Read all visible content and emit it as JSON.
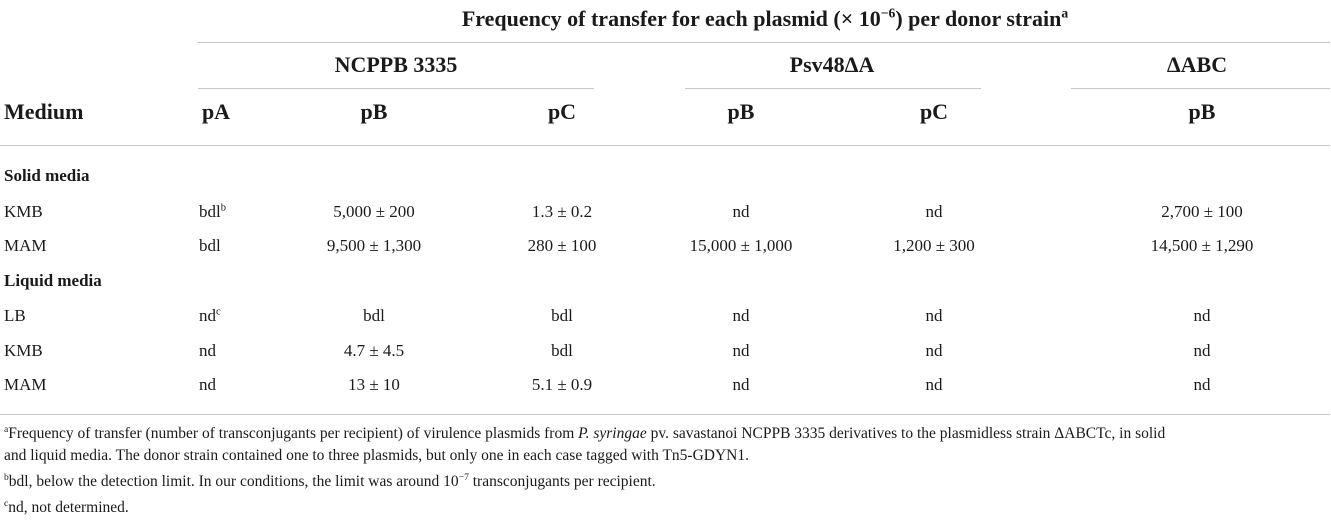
{
  "table": {
    "super_header": {
      "prefix": "Frequency of transfer for each plasmid (× 10",
      "exponent": "−6",
      "suffix": ") per donor strain",
      "note_marker": "a"
    },
    "strain_headers": [
      "NCPPB 3335",
      "Psv48ΔA",
      "ΔABC"
    ],
    "column_headers": [
      "Medium",
      "pA",
      "pB",
      "pC",
      "pB",
      "pC",
      "pB"
    ],
    "sections": [
      {
        "label": "Solid media",
        "rows": [
          {
            "medium": "KMB",
            "cells": [
              "bdl",
              "5,000 ± 200",
              "1.3 ± 0.2",
              "nd",
              "nd",
              "2,700 ± 100"
            ],
            "pa_marker": "b"
          },
          {
            "medium": "MAM",
            "cells": [
              "bdl",
              "9,500 ± 1,300",
              "280 ± 100",
              "15,000 ± 1,000",
              "1,200 ± 300",
              "14,500 ± 1,290"
            ],
            "pa_marker": ""
          }
        ]
      },
      {
        "label": "Liquid media",
        "rows": [
          {
            "medium": "LB",
            "cells": [
              "nd",
              "bdl",
              "bdl",
              "nd",
              "nd",
              "nd"
            ],
            "pa_marker": "c"
          },
          {
            "medium": "KMB",
            "cells": [
              "nd",
              "4.7 ± 4.5",
              "bdl",
              "nd",
              "nd",
              "nd"
            ],
            "pa_marker": ""
          },
          {
            "medium": "MAM",
            "cells": [
              "nd",
              "13 ± 10",
              "5.1 ± 0.9",
              "nd",
              "nd",
              "nd"
            ],
            "pa_marker": ""
          }
        ]
      }
    ]
  },
  "footnotes": {
    "a": {
      "marker": "a",
      "part1": "Frequency of transfer (number of transconjugants per recipient) of virulence plasmids from ",
      "italic": "P. syringae",
      "part2": " pv. savastanoi NCPPB 3335 derivatives to the plasmidless strain ΔABCTc, in solid",
      "line2": "and liquid media. The donor strain contained one to three plasmids, but only one in each case tagged with Tn5-GDYN1."
    },
    "b": {
      "marker": "b",
      "text": "bdl, below the detection limit. In our conditions, the limit was around 10",
      "exponent": "−7",
      "suffix": " transconjugants per recipient."
    },
    "c": {
      "marker": "c",
      "text": "nd, not determined."
    }
  }
}
